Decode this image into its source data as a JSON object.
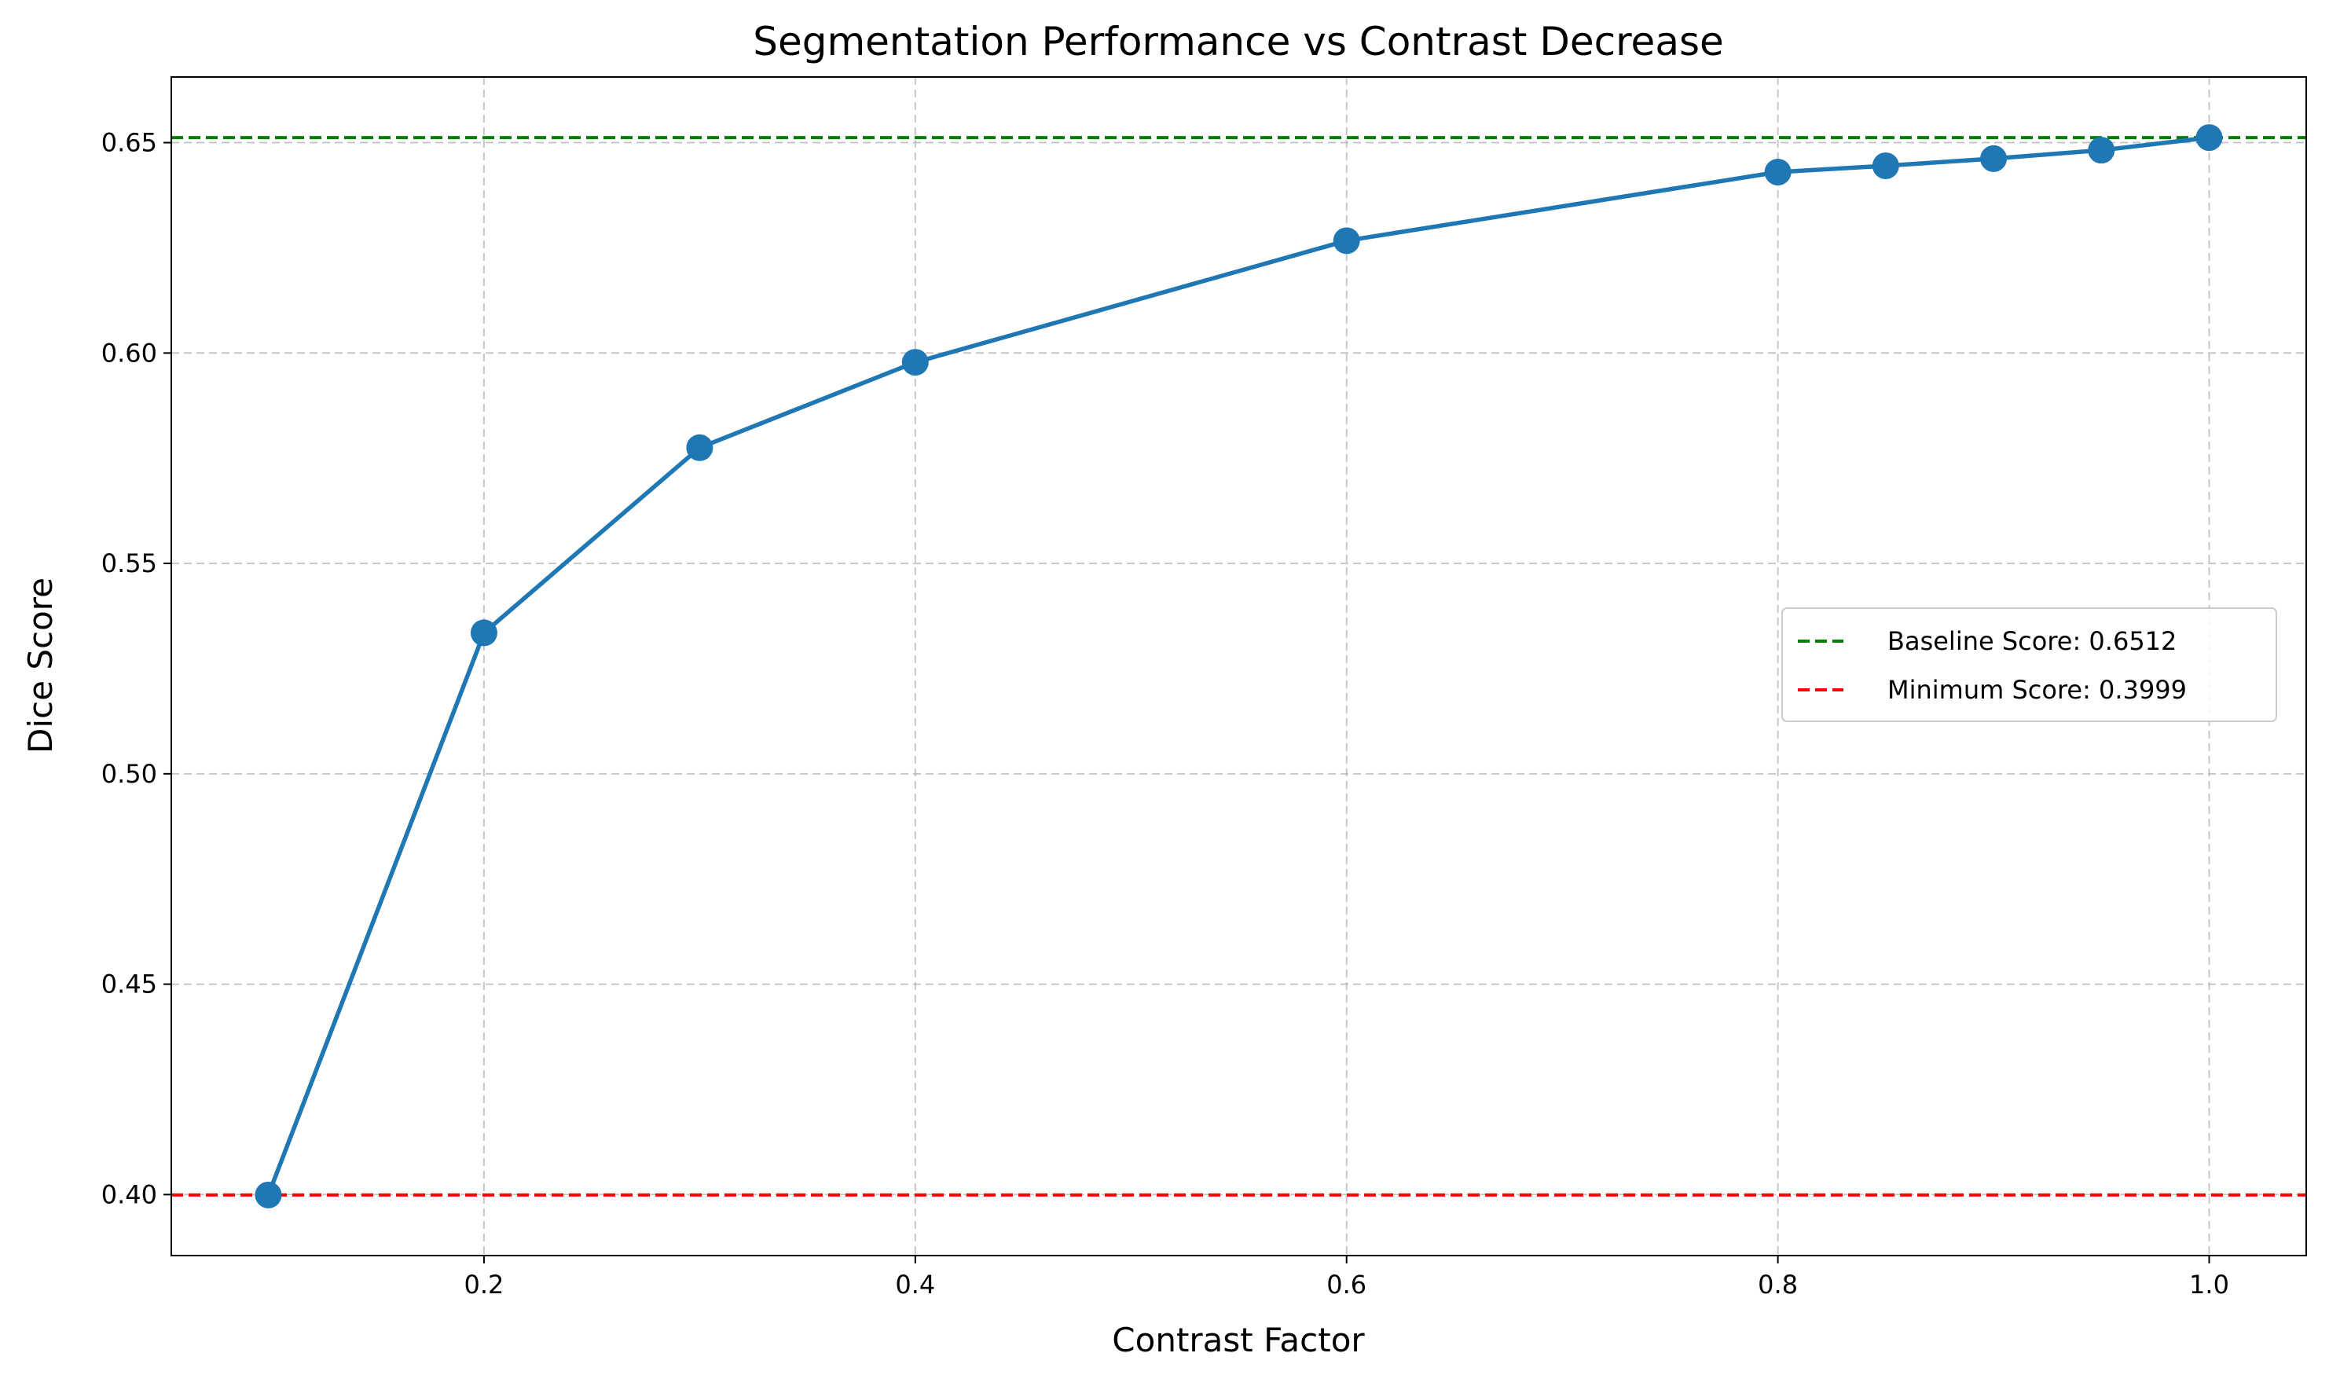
{
  "chart_data": {
    "type": "line",
    "title": "Segmentation Performance vs Contrast Decrease",
    "xlabel": "Contrast Factor",
    "ylabel": "Dice Score",
    "xlim": [
      0.055,
      1.045
    ],
    "ylim": [
      0.3855,
      0.6656
    ],
    "xticks": [
      0.2,
      0.4,
      0.6,
      0.8,
      1.0
    ],
    "xtick_labels": [
      "0.2",
      "0.4",
      "0.6",
      "0.8",
      "1.0"
    ],
    "yticks": [
      0.4,
      0.45,
      0.5,
      0.55,
      0.6,
      0.65
    ],
    "ytick_labels": [
      "0.40",
      "0.45",
      "0.50",
      "0.55",
      "0.60",
      "0.65"
    ],
    "grid": true,
    "legend_position": "center-right",
    "series": [
      {
        "color": "#1f77b4",
        "marker": "circle",
        "x": [
          0.1,
          0.2,
          0.3,
          0.4,
          0.6,
          0.8,
          0.85,
          0.9,
          0.95,
          1.0
        ],
        "y": [
          0.3999,
          0.5335,
          0.5775,
          0.5978,
          0.6267,
          0.643,
          0.6445,
          0.6462,
          0.6482,
          0.6512
        ]
      }
    ],
    "reference_lines": [
      {
        "name": "Baseline Score: 0.6512",
        "y": 0.6512,
        "color": "#008000",
        "style": "dashed"
      },
      {
        "name": "Minimum Score: 0.3999",
        "y": 0.3999,
        "color": "#ff0000",
        "style": "dashed"
      }
    ]
  }
}
